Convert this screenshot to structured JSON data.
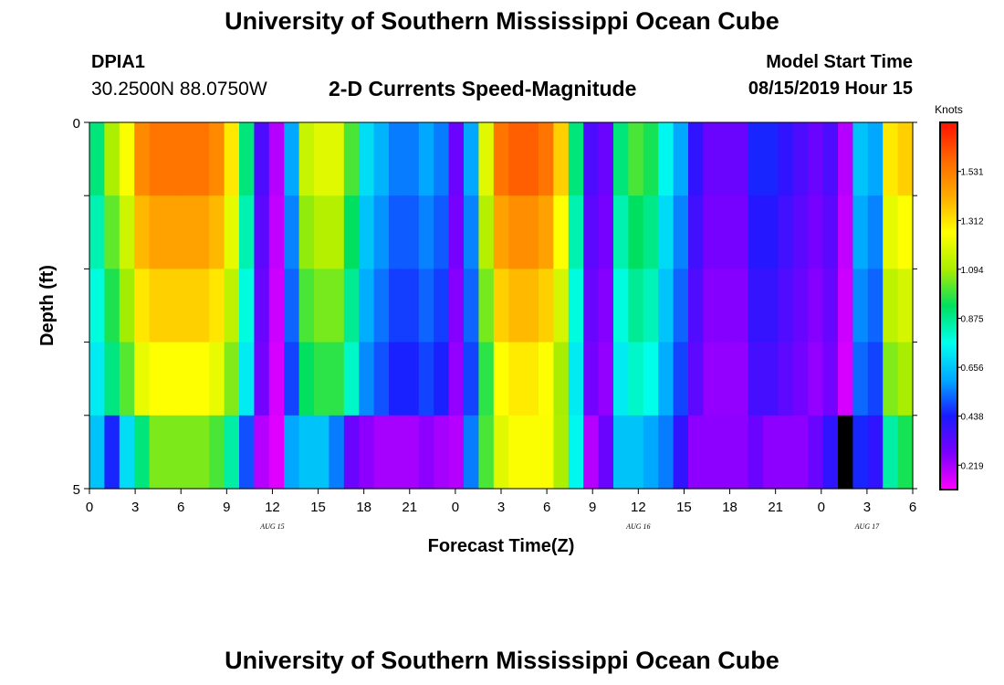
{
  "header": {
    "title": "University of Southern Mississippi Ocean Cube",
    "station": "DPIA1",
    "coords": "30.2500N 88.0750W",
    "subtitle": "2-D Currents Speed-Magnitude",
    "start_label": "Model Start Time",
    "start_value": "08/15/2019 Hour 15"
  },
  "footer": {
    "title": "University of Southern Mississippi Ocean Cube"
  },
  "chart_data": {
    "type": "heatmap",
    "title": "2-D Currents Speed-Magnitude",
    "xlabel": "Forecast Time(Z)",
    "ylabel": "Depth (ft)",
    "x_hours": [
      0,
      1,
      2,
      3,
      4,
      5,
      6,
      7,
      8,
      9,
      10,
      11,
      12,
      13,
      14,
      15,
      16,
      17,
      18,
      19,
      20,
      21,
      22,
      23,
      24,
      25,
      26,
      27,
      28,
      29,
      30,
      31,
      32,
      33,
      34,
      35,
      36,
      37,
      38,
      39,
      40,
      41,
      42,
      43,
      44,
      45,
      46,
      47,
      48,
      49,
      50,
      51,
      52,
      53,
      54
    ],
    "x_tick_labels": [
      "0",
      "3",
      "6",
      "9",
      "12",
      "15",
      "18",
      "21",
      "0",
      "3",
      "6",
      "9",
      "12",
      "15",
      "18",
      "21",
      "0",
      "3",
      "6"
    ],
    "date_labels": [
      {
        "text": "AUG 15",
        "hour": 12
      },
      {
        "text": "AUG 16",
        "hour": 36
      },
      {
        "text": "AUG 17",
        "hour": 51
      }
    ],
    "y_tick_labels": [
      "0",
      "5"
    ],
    "y_range": [
      0,
      5
    ],
    "depth_rows": 5,
    "colorbar": {
      "label": "Knots",
      "min": 0.11,
      "max": 1.75,
      "ticks": [
        "0.219",
        "0.438",
        "0.656",
        "0.875",
        "1.094",
        "1.312",
        "1.531"
      ],
      "colors": [
        "#ff00ff",
        "#7a00ff",
        "#1a1aff",
        "#00aaff",
        "#00ffee",
        "#00e060",
        "#aaee00",
        "#ffff00",
        "#ffaa00",
        "#ff6600",
        "#ff1000"
      ]
    },
    "missing_marker_hour": 50,
    "base_speed": [
      0.9,
      1.1,
      1.25,
      1.5,
      1.55,
      1.55,
      1.55,
      1.55,
      1.5,
      1.3,
      0.9,
      0.35,
      0.2,
      0.6,
      1.15,
      1.2,
      1.2,
      1.0,
      0.7,
      0.62,
      0.55,
      0.55,
      0.6,
      0.55,
      0.3,
      0.6,
      1.2,
      1.55,
      1.6,
      1.6,
      1.55,
      1.35,
      0.9,
      0.35,
      0.3,
      0.9,
      1.0,
      0.95,
      0.75,
      0.6,
      0.4,
      0.3,
      0.3,
      0.3,
      0.45,
      0.45,
      0.4,
      0.35,
      0.3,
      0.35,
      0.2,
      0.65,
      0.6,
      1.3,
      1.35
    ],
    "depth_factor": [
      1.0,
      0.93,
      0.87,
      0.81,
      0.73
    ],
    "bottom_speed": [
      0.65,
      0.45,
      0.7,
      0.9,
      1.05,
      1.05,
      1.05,
      1.05,
      1.0,
      0.85,
      0.5,
      0.2,
      0.15,
      0.6,
      0.65,
      0.65,
      0.55,
      0.3,
      0.25,
      0.22,
      0.22,
      0.22,
      0.25,
      0.22,
      0.2,
      0.55,
      1.0,
      1.2,
      1.25,
      1.25,
      1.25,
      1.1,
      0.75,
      0.2,
      0.3,
      0.65,
      0.65,
      0.6,
      0.55,
      0.4,
      0.25,
      0.25,
      0.25,
      0.25,
      0.3,
      0.25,
      0.25,
      0.25,
      0.3,
      0.4,
      null,
      0.45,
      0.4,
      0.85,
      0.95
    ]
  }
}
